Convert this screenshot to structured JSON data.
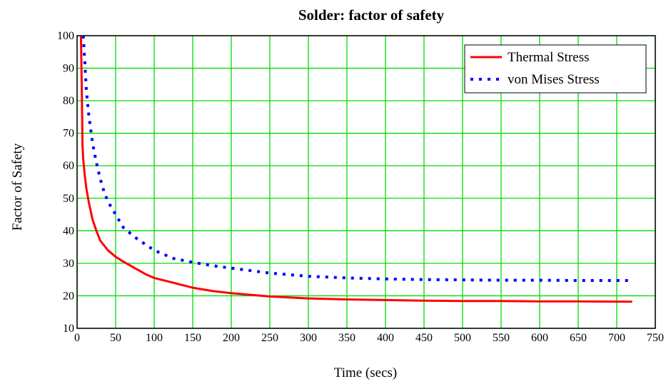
{
  "chart_data": {
    "type": "line",
    "title": "Solder: factor of safety",
    "xlabel": "Time (secs)",
    "ylabel": "Factor of Safety",
    "xlim": [
      0,
      750
    ],
    "ylim": [
      10,
      100
    ],
    "xticks": [
      0,
      50,
      100,
      150,
      200,
      250,
      300,
      350,
      400,
      450,
      500,
      550,
      600,
      650,
      700,
      750
    ],
    "yticks": [
      10,
      20,
      30,
      40,
      50,
      60,
      70,
      80,
      90,
      100
    ],
    "grid": true,
    "legend_position": "top-right",
    "series": [
      {
        "name": "Thermal Stress",
        "color": "#ff0000",
        "style": "solid",
        "x": [
          5,
          6,
          7,
          8,
          10,
          12,
          15,
          20,
          25,
          30,
          40,
          50,
          60,
          75,
          90,
          100,
          125,
          150,
          175,
          200,
          250,
          300,
          350,
          400,
          450,
          500,
          550,
          600,
          650,
          700,
          720
        ],
        "y": [
          100,
          85,
          66,
          62,
          57,
          53,
          49,
          43.5,
          40,
          37,
          34,
          32,
          30.5,
          28.5,
          26.5,
          25.5,
          24,
          22.5,
          21.5,
          20.8,
          19.8,
          19.2,
          18.9,
          18.7,
          18.5,
          18.4,
          18.4,
          18.3,
          18.3,
          18.2,
          18.2
        ]
      },
      {
        "name": "von Mises Stress",
        "color": "#0000ff",
        "style": "dotted",
        "x": [
          8,
          10,
          12,
          15,
          20,
          25,
          30,
          35,
          40,
          50,
          60,
          75,
          100,
          125,
          150,
          175,
          200,
          250,
          300,
          350,
          400,
          450,
          500,
          550,
          600,
          650,
          700,
          720
        ],
        "y": [
          100,
          92,
          83,
          76,
          67,
          61,
          56,
          52,
          49,
          45,
          41,
          38,
          34,
          31.5,
          30.3,
          29.3,
          28.5,
          27,
          26,
          25.5,
          25.2,
          25,
          24.9,
          24.8,
          24.8,
          24.7,
          24.7,
          24.7
        ]
      }
    ]
  }
}
